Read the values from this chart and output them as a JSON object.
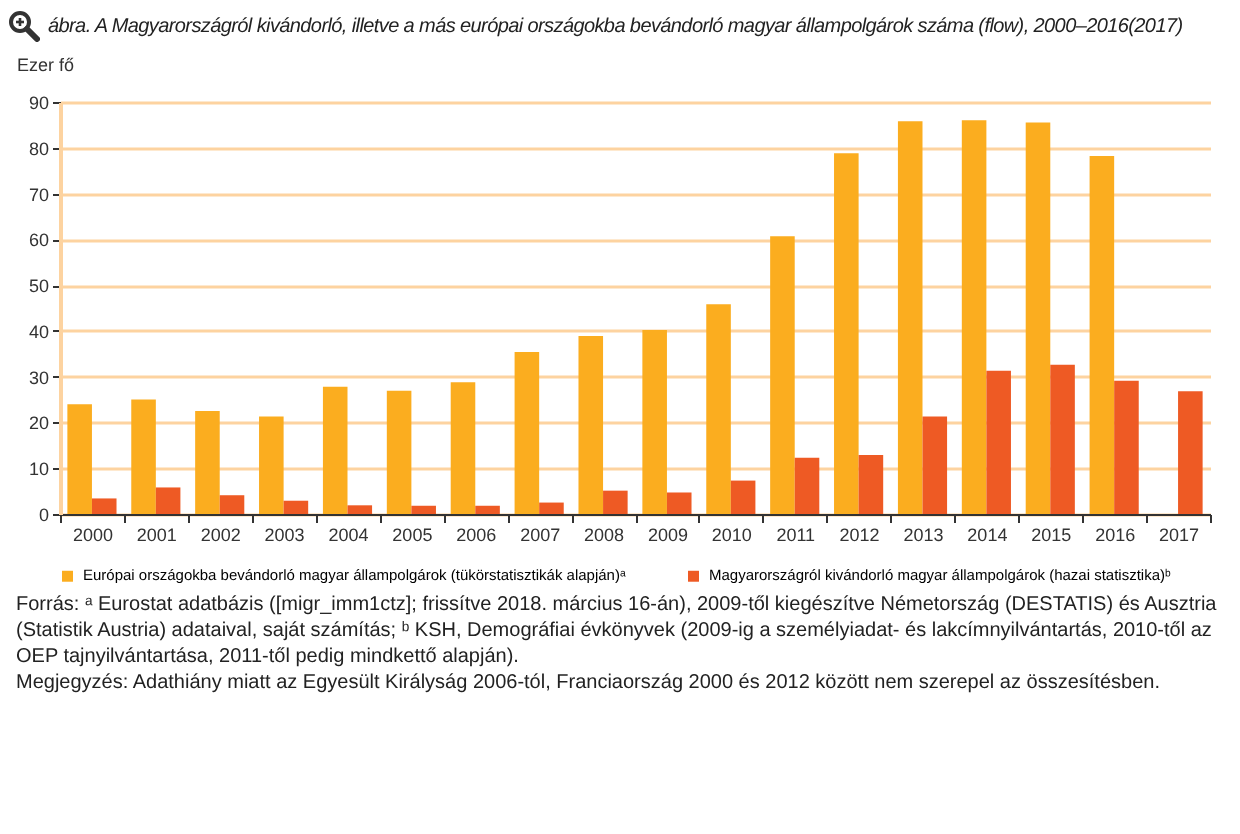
{
  "chart_data": {
    "type": "bar",
    "title": "ábra. A Magyarországról kivándorló, illetve a más európai országokba bevándorló magyar állampolgárok száma (flow), 2000–2016(2017)",
    "ylabel": "Ezer fő",
    "categories": [
      "2000",
      "2001",
      "2002",
      "2003",
      "2004",
      "2005",
      "2006",
      "2007",
      "2008",
      "2009",
      "2010",
      "2011",
      "2012",
      "2013",
      "2014",
      "2015",
      "2016",
      "2017"
    ],
    "series": [
      {
        "name": "Európai országokba bevándorló magyar állampolgárok (tükörstatisztikák alapján)ᵃ",
        "color": "#fbad1f",
        "values": [
          24.0,
          25.0,
          22.5,
          21.3,
          27.8,
          26.9,
          28.8,
          35.4,
          38.9,
          40.2,
          45.8,
          60.7,
          78.8,
          85.8,
          86.0,
          85.5,
          78.2,
          null
        ]
      },
      {
        "name": "Magyarországról kivándorló magyar állampolgárok (hazai statisztika)ᵇ",
        "color": "#ee5a24",
        "values": [
          3.4,
          5.8,
          4.1,
          2.9,
          1.9,
          1.8,
          1.8,
          2.5,
          5.1,
          4.7,
          7.3,
          12.3,
          12.9,
          21.3,
          31.3,
          32.6,
          29.1,
          26.8
        ]
      }
    ],
    "ylim": [
      0,
      90
    ],
    "yticks": [
      0,
      10,
      20,
      30,
      40,
      50,
      60,
      70,
      80,
      90
    ],
    "grid": "y",
    "legend": "bottom",
    "annotations": [
      "Forrás: ᵃ Eurostat adatbázis ([migr_imm1ctz]; frissítve 2018. március 16-án), 2009-től kiegészítve Németország (DESTATIS) és Ausztria (Statistik Austria) adataival, saját számítás; ᵇ KSH, Demográfiai évkönyvek (2009-ig a személyiadat- és lakcímnyilvántartás, 2010-től az OEP tajnyilvántartása, 2011-től pedig mindkettő alapján).",
      "Megjegyzés: Adathiány miatt az Egyesült Királyság 2006-tól, Franciaország 2000 és 2012 között nem szerepel az összesítésben."
    ]
  }
}
